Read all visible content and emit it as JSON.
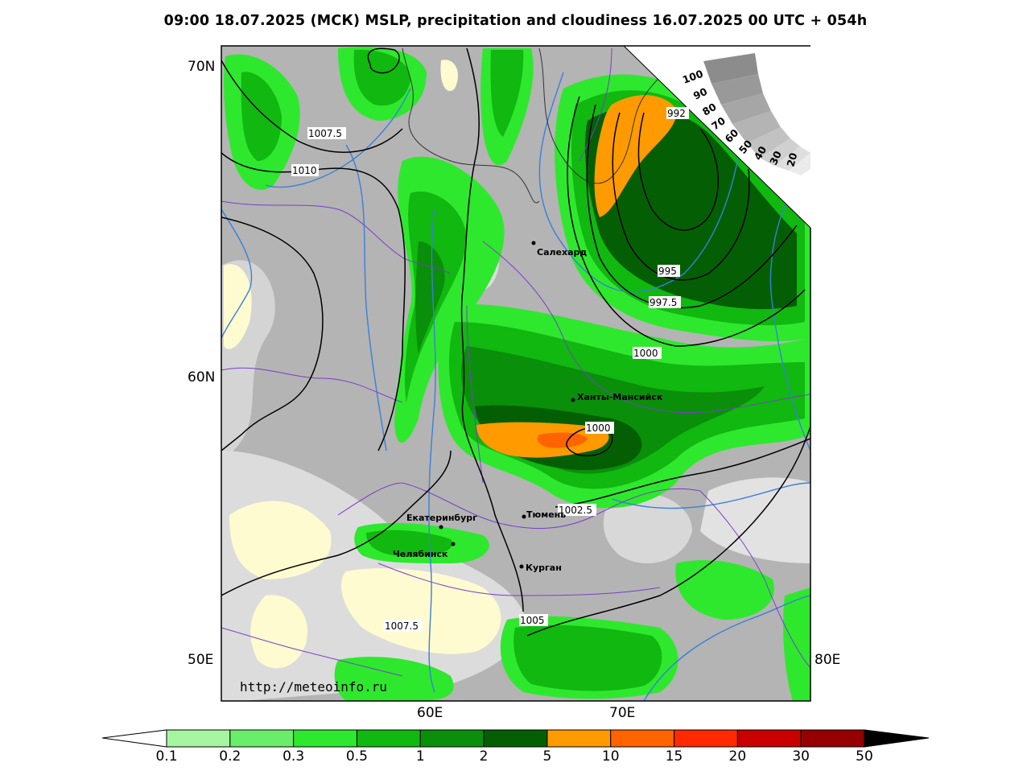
{
  "title": "09:00 18.07.2025 (МСК) MSLP, precipitation and cloudiness 16.07.2025 00 UTC + 054h",
  "watermark": "http://meteoinfo.ru",
  "lat_labels": [
    "70N",
    "60N",
    "50E"
  ],
  "lon_labels": [
    "60E",
    "70E",
    "80E"
  ],
  "cities": [
    {
      "name": "Салехард"
    },
    {
      "name": "Ханты-Мансийск"
    },
    {
      "name": "Екатеринбург"
    },
    {
      "name": "Тюмень"
    },
    {
      "name": "Челябинск"
    },
    {
      "name": "Курган"
    }
  ],
  "isobar_labels": [
    "1007.5",
    "1010",
    "992",
    "995",
    "997.5",
    "1000",
    "1000",
    "1002.5",
    "1005",
    "1007.5"
  ],
  "cloudiness_scale": [
    "100",
    "90",
    "80",
    "70",
    "60",
    "50",
    "40",
    "30",
    "20"
  ],
  "colorbar": {
    "labels": [
      "0.1",
      "0.2",
      "0.3",
      "0.5",
      "1",
      "2",
      "5",
      "10",
      "15",
      "20",
      "30",
      "50"
    ],
    "colors": [
      "#a6f5a0",
      "#6aee6a",
      "#2ee82e",
      "#10b810",
      "#0a8f0a",
      "#045f04",
      "#ff9a00",
      "#ff6400",
      "#ff2a00",
      "#c80000",
      "#960000"
    ]
  }
}
